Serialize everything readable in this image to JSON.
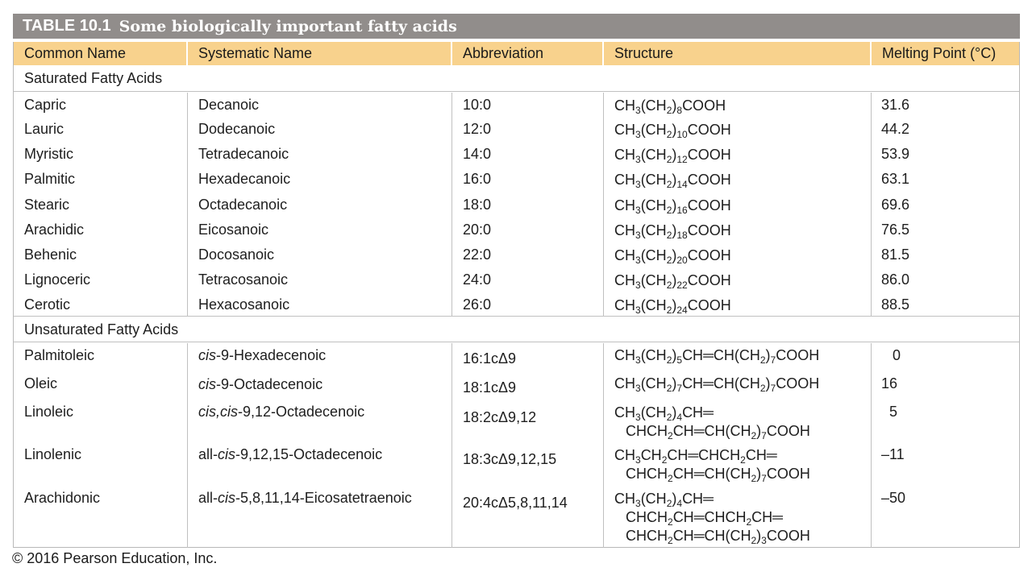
{
  "title": {
    "number": "TABLE 10.1",
    "text": "Some biologically important fatty acids"
  },
  "headers": {
    "common_name": "Common Name",
    "systematic_name": "Systematic Name",
    "abbreviation": "Abbreviation",
    "structure": "Structure",
    "melting_point": "Melting Point (°C)"
  },
  "saturated": {
    "label": "Saturated Fatty Acids",
    "rows": [
      {
        "common": "Capric",
        "systematic": "Decanoic",
        "abbr": "10:0",
        "n": "8",
        "mp": "31.6"
      },
      {
        "common": "Lauric",
        "systematic": "Dodecanoic",
        "abbr": "12:0",
        "n": "10",
        "mp": "44.2"
      },
      {
        "common": "Myristic",
        "systematic": "Tetradecanoic",
        "abbr": "14:0",
        "n": "12",
        "mp": "53.9"
      },
      {
        "common": "Palmitic",
        "systematic": "Hexadecanoic",
        "abbr": "16:0",
        "n": "14",
        "mp": "63.1"
      },
      {
        "common": "Stearic",
        "systematic": "Octadecanoic",
        "abbr": "18:0",
        "n": "16",
        "mp": "69.6"
      },
      {
        "common": "Arachidic",
        "systematic": "Eicosanoic",
        "abbr": "20:0",
        "n": "18",
        "mp": "76.5"
      },
      {
        "common": "Behenic",
        "systematic": "Docosanoic",
        "abbr": "22:0",
        "n": "20",
        "mp": "81.5"
      },
      {
        "common": "Lignoceric",
        "systematic": "Tetracosanoic",
        "abbr": "24:0",
        "n": "22",
        "mp": "86.0"
      },
      {
        "common": "Cerotic",
        "systematic": "Hexacosanoic",
        "abbr": "26:0",
        "n": "24",
        "mp": "88.5"
      }
    ]
  },
  "unsaturated": {
    "label": "Unsaturated Fatty Acids",
    "rows": [
      {
        "common": "Palmitoleic",
        "sys_prefix": "",
        "sys_cis": "cis",
        "sys_rest": "-9-Hexadecenoic",
        "abbr": "16:1cΔ9",
        "mp": "0"
      },
      {
        "common": "Oleic",
        "sys_prefix": "",
        "sys_cis": "cis",
        "sys_rest": "-9-Octadecenoic",
        "abbr": "18:1cΔ9",
        "mp": "16"
      },
      {
        "common": "Linoleic",
        "sys_prefix": "",
        "sys_cis": "cis,cis",
        "sys_rest": "-9,12-Octadecenoic",
        "abbr": "18:2cΔ9,12",
        "mp": "5"
      },
      {
        "common": "Linolenic",
        "sys_prefix": "all-",
        "sys_cis": "cis",
        "sys_rest": "-9,12,15-Octadecenoic",
        "abbr": "18:3cΔ9,12,15",
        "mp": "–11"
      },
      {
        "common": "Arachidonic",
        "sys_prefix": "all-",
        "sys_cis": "cis",
        "sys_rest": "-5,8,11,14-Eicosatetraenoic",
        "abbr": "20:4cΔ5,8,11,14",
        "mp": "–50"
      }
    ]
  },
  "footer": "© 2016 Pearson Education, Inc."
}
